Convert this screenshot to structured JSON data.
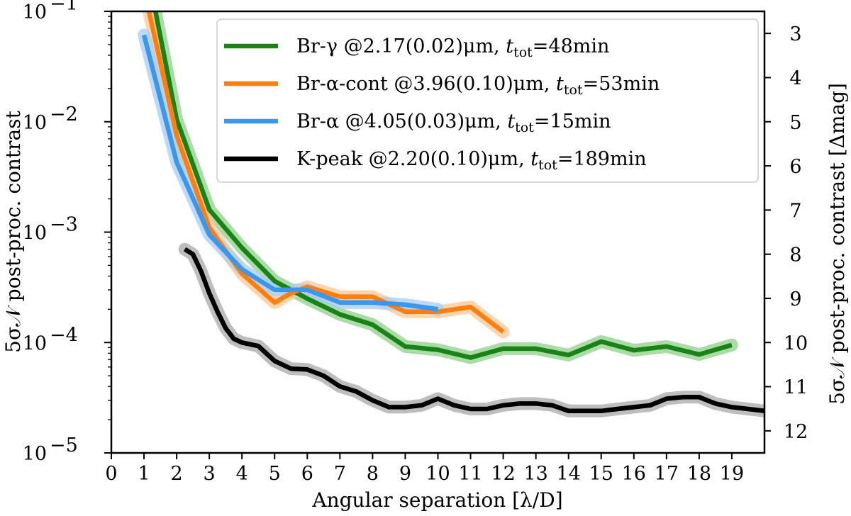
{
  "chart_data": {
    "type": "line",
    "x_axis": {
      "label": "Angular separation [λ/D]",
      "range": [
        0,
        20
      ],
      "ticks": [
        0,
        1,
        2,
        3,
        4,
        5,
        6,
        7,
        8,
        9,
        10,
        11,
        12,
        13,
        14,
        15,
        16,
        17,
        18,
        19
      ]
    },
    "y_axis_left": {
      "label": "5σ𝒩 post-proc. contrast",
      "scale": "log",
      "range": [
        1e-05,
        0.1
      ],
      "ticks": [
        {
          "value": 1e-05,
          "base": "10",
          "exp": "−5"
        },
        {
          "value": 0.0001,
          "base": "10",
          "exp": "−4"
        },
        {
          "value": 0.001,
          "base": "10",
          "exp": "−3"
        },
        {
          "value": 0.01,
          "base": "10",
          "exp": "−2"
        },
        {
          "value": 0.1,
          "base": "10",
          "exp": "−1"
        }
      ]
    },
    "y_axis_right": {
      "label": "5σ𝒩 post-proc. contrast [Δmag]",
      "ticks": [
        3,
        4,
        5,
        6,
        7,
        8,
        9,
        10,
        11,
        12
      ]
    },
    "grid": false,
    "legend_position": "top-right",
    "series": [
      {
        "name": "Br-γ @2.17(0.02)μm, t_tot=48min",
        "legend_parts": [
          "Br-γ @2.17(0.02)μm, ",
          "t",
          "tot",
          "=48min"
        ],
        "color": "#1a8317",
        "band_color": "#8fd08a",
        "x": [
          1.35,
          2,
          3,
          4,
          5,
          6,
          7,
          8,
          9,
          10,
          11,
          12,
          13,
          14,
          15,
          16,
          17,
          18,
          19
        ],
        "y": [
          0.1,
          0.0105,
          0.0016,
          0.00072,
          0.00036,
          0.00025,
          0.00018,
          0.000145,
          9.2e-05,
          8.6e-05,
          7.3e-05,
          8.8e-05,
          8.8e-05,
          7.7e-05,
          0.000102,
          8.5e-05,
          9.2e-05,
          7.8e-05,
          9.5e-05
        ]
      },
      {
        "name": "Br-α-cont @3.96(0.10)μm, t_tot=53min",
        "legend_parts": [
          "Br-α-cont @3.96(0.10)μm, ",
          "t",
          "tot",
          "=53min"
        ],
        "color": "#ff7f0e",
        "band_color": "#ffc794",
        "x": [
          1.15,
          2,
          3,
          4,
          5,
          5.5,
          6,
          7,
          8,
          9,
          10,
          11,
          12
        ],
        "y": [
          0.1,
          0.0075,
          0.0011,
          0.00042,
          0.00023,
          0.00028,
          0.00032,
          0.00026,
          0.00026,
          0.00019,
          0.00019,
          0.00021,
          0.000125
        ]
      },
      {
        "name": "Br-α @4.05(0.03)μm, t_tot=15min",
        "legend_parts": [
          "Br-α @4.05(0.03)μm, ",
          "t",
          "tot",
          "=15min"
        ],
        "color": "#3a97ee",
        "band_color": "#a6cdf5",
        "x": [
          1,
          2,
          3,
          4,
          5,
          6,
          7,
          8,
          9,
          10
        ],
        "y": [
          0.061,
          0.0043,
          0.00095,
          0.00046,
          0.0003,
          0.0003,
          0.00023,
          0.00023,
          0.00022,
          0.0002
        ]
      },
      {
        "name": "K-peak @2.20(0.10)μm, t_tot=189min",
        "legend_parts": [
          "K-peak @2.20(0.10)μm, ",
          "t",
          "tot",
          "=189min"
        ],
        "color": "#000000",
        "band_color": "#a8a8a8",
        "x": [
          2.25,
          2.5,
          2.75,
          3,
          3.25,
          3.5,
          3.75,
          4,
          4.5,
          5,
          5.5,
          6,
          6.5,
          7,
          7.5,
          8,
          8.5,
          9,
          9.5,
          10,
          10.5,
          11,
          11.5,
          12,
          12.5,
          13,
          13.5,
          14,
          14.5,
          15,
          15.5,
          16,
          16.5,
          17,
          17.5,
          18,
          18.5,
          19,
          19.5,
          20
        ],
        "y": [
          0.0007,
          0.00063,
          0.00044,
          0.00028,
          0.00019,
          0.000135,
          0.000108,
          0.0001,
          9.3e-05,
          6.8e-05,
          5.8e-05,
          5.7e-05,
          5e-05,
          4e-05,
          3.6e-05,
          3e-05,
          2.6e-05,
          2.6e-05,
          2.7e-05,
          3.1e-05,
          2.7e-05,
          2.5e-05,
          2.5e-05,
          2.7e-05,
          2.8e-05,
          2.8e-05,
          2.7e-05,
          2.4e-05,
          2.4e-05,
          2.4e-05,
          2.5e-05,
          2.6e-05,
          2.7e-05,
          3.1e-05,
          3.2e-05,
          3.2e-05,
          2.8e-05,
          2.6e-05,
          2.5e-05,
          2.4e-05
        ]
      }
    ]
  }
}
